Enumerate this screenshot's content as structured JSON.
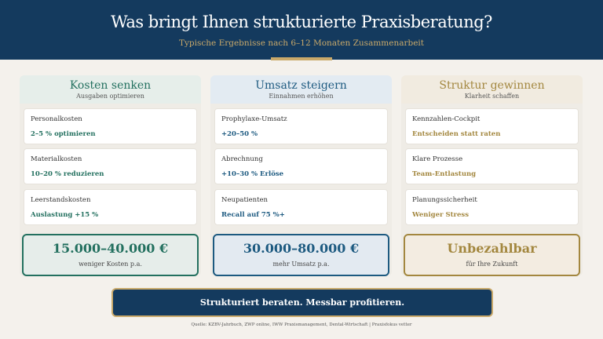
{
  "header": {
    "title": "Was bringt Ihnen strukturierte Praxisberatung?",
    "subtitle": "Typische Ergebnisse nach 6–12 Monaten Zusammenarbeit"
  },
  "columns": [
    {
      "title": "Kosten senken",
      "subtitle": "Ausgaben optimieren",
      "color": "#23705f",
      "header_bg": "#e6eeea",
      "total_bg": "#e6edea",
      "items": [
        {
          "label": "Personalkosten",
          "value": "2–5 % optimieren"
        },
        {
          "label": "Materialkosten",
          "value": "10–20 % reduzieren"
        },
        {
          "label": "Leerstandskosten",
          "value": "Auslastung +15 %"
        }
      ],
      "total": "15.000–40.000 €",
      "total_caption": "weniger Kosten p.a."
    },
    {
      "title": "Umsatz steigern",
      "subtitle": "Einnahmen erhöhen",
      "color": "#1d5a80",
      "header_bg": "#e3ebf2",
      "total_bg": "#e3eaf1",
      "items": [
        {
          "label": "Prophylaxe-Umsatz",
          "value": "+20–50 %"
        },
        {
          "label": "Abrechnung",
          "value": "+10–30 % Erlöse"
        },
        {
          "label": "Neupatienten",
          "value": "Recall auf 75 %+"
        }
      ],
      "total": "30.000–80.000 €",
      "total_caption": "mehr Umsatz p.a."
    },
    {
      "title": "Struktur gewinnen",
      "subtitle": "Klarheit schaffen",
      "color": "#a3873f",
      "header_bg": "#f1ebe0",
      "total_bg": "#f3ece1",
      "items": [
        {
          "label": "Kennzahlen-Cockpit",
          "value": "Entscheiden statt raten"
        },
        {
          "label": "Klare Prozesse",
          "value": "Team-Entlastung"
        },
        {
          "label": "Planungssicherheit",
          "value": "Weniger Stress"
        }
      ],
      "total": "Unbezahlbar",
      "total_caption": "für Ihre Zukunft"
    }
  ],
  "banner": "Strukturiert beraten. Messbar profitieren.",
  "source": "Quelle: KZBV-Jahrbuch, ZWP online, IWW Praxismanagement, Dental-Wirtschaft | Praxisfokus vetter"
}
